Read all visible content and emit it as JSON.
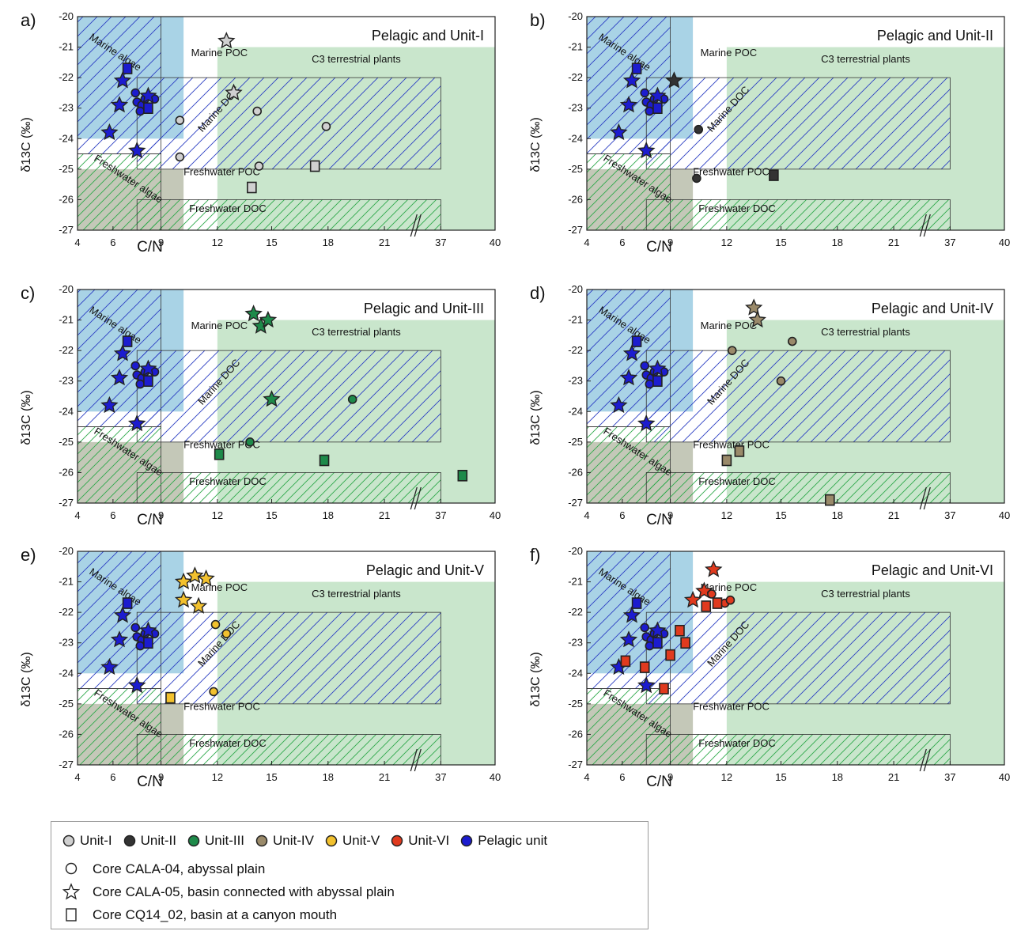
{
  "chart_data": {
    "type": "scatter",
    "x_ticks": [
      "4",
      "6",
      "9",
      "12",
      "15",
      "18",
      "21",
      "37",
      "40"
    ],
    "y_ticks": [
      "-20",
      "-21",
      "-22",
      "-23",
      "-24",
      "-25",
      "-26",
      "-27"
    ],
    "xlabel": "C/N",
    "ylabel": "δ13C (‰)",
    "ylim": [
      -27,
      -20
    ],
    "colors": {
      "Unit-I": "#d0d0d0",
      "Unit-II": "#333333",
      "Unit-III": "#1e8a4a",
      "Unit-IV": "#9a8a6a",
      "Unit-V": "#f2c12e",
      "Unit-VI": "#e03a1e",
      "Pelagic unit": "#1c1ccf",
      "marine_algae_fill": "#a9d3e6",
      "freshwater_algae_fill": "#c4c8b8",
      "terrestrial_fill": "#c9e6cc",
      "marine_hatch": "#2233bb",
      "freshwater_hatch": "#2ea84a"
    },
    "region_labels": {
      "marine_algae": "Marine algae",
      "marine_poc": "Marine POC",
      "marine_doc": "Marine DOC",
      "freshwater_algae": "Freshwater algae",
      "freshwater_poc": "Freshwater POC",
      "freshwater_doc": "Freshwater DOC",
      "c3": "C3 terrestrial plants"
    },
    "pelagic_points": [
      {
        "x": 6.9,
        "y": -21.7,
        "marker": "square"
      },
      {
        "x": 6.6,
        "y": -22.1,
        "marker": "star"
      },
      {
        "x": 6.4,
        "y": -22.9,
        "marker": "star"
      },
      {
        "x": 5.8,
        "y": -23.8,
        "marker": "star"
      },
      {
        "x": 7.5,
        "y": -24.4,
        "marker": "star"
      },
      {
        "x": 7.4,
        "y": -22.5,
        "marker": "circle"
      },
      {
        "x": 7.5,
        "y": -22.8,
        "marker": "circle"
      },
      {
        "x": 7.8,
        "y": -22.9,
        "marker": "circle"
      },
      {
        "x": 7.7,
        "y": -23.1,
        "marker": "circle"
      },
      {
        "x": 8.0,
        "y": -22.7,
        "marker": "circle"
      },
      {
        "x": 8.6,
        "y": -22.7,
        "marker": "circle"
      },
      {
        "x": 8.2,
        "y": -22.6,
        "marker": "star"
      },
      {
        "x": 8.2,
        "y": -23.0,
        "marker": "square"
      }
    ],
    "panels": [
      {
        "letter": "a)",
        "title": "Pelagic and Unit-I",
        "unit": "Unit-I",
        "points": [
          {
            "x": 12.5,
            "y": -20.8,
            "marker": "star"
          },
          {
            "x": 12.9,
            "y": -22.5,
            "marker": "star"
          },
          {
            "x": 10.0,
            "y": -23.4,
            "marker": "circle"
          },
          {
            "x": 10.0,
            "y": -24.6,
            "marker": "circle"
          },
          {
            "x": 14.2,
            "y": -23.1,
            "marker": "circle"
          },
          {
            "x": 14.3,
            "y": -24.9,
            "marker": "circle"
          },
          {
            "x": 17.9,
            "y": -23.6,
            "marker": "circle"
          },
          {
            "x": 17.3,
            "y": -24.9,
            "marker": "square"
          },
          {
            "x": 13.9,
            "y": -25.6,
            "marker": "square"
          }
        ]
      },
      {
        "letter": "b)",
        "title": "Pelagic and Unit-II",
        "unit": "Unit-II",
        "points": [
          {
            "x": 9.2,
            "y": -22.1,
            "marker": "star"
          },
          {
            "x": 10.5,
            "y": -23.7,
            "marker": "circle"
          },
          {
            "x": 10.4,
            "y": -25.3,
            "marker": "circle"
          },
          {
            "x": 14.6,
            "y": -25.2,
            "marker": "square"
          }
        ]
      },
      {
        "letter": "c)",
        "title": "Pelagic and Unit-III",
        "unit": "Unit-III",
        "points": [
          {
            "x": 14.0,
            "y": -20.8,
            "marker": "star"
          },
          {
            "x": 14.4,
            "y": -21.2,
            "marker": "star"
          },
          {
            "x": 14.8,
            "y": -21.0,
            "marker": "star"
          },
          {
            "x": 15.0,
            "y": -23.6,
            "marker": "star"
          },
          {
            "x": 19.3,
            "y": -23.6,
            "marker": "circle"
          },
          {
            "x": 13.8,
            "y": -25.0,
            "marker": "circle"
          },
          {
            "x": 12.1,
            "y": -25.4,
            "marker": "square"
          },
          {
            "x": 17.8,
            "y": -25.6,
            "marker": "square"
          },
          {
            "x": 38.2,
            "y": -26.1,
            "marker": "square"
          }
        ]
      },
      {
        "letter": "d)",
        "title": "Pelagic and Unit-IV",
        "unit": "Unit-IV",
        "points": [
          {
            "x": 13.5,
            "y": -20.6,
            "marker": "star"
          },
          {
            "x": 13.7,
            "y": -21.0,
            "marker": "star"
          },
          {
            "x": 12.3,
            "y": -22.0,
            "marker": "circle"
          },
          {
            "x": 15.6,
            "y": -21.7,
            "marker": "circle"
          },
          {
            "x": 15.0,
            "y": -23.0,
            "marker": "circle"
          },
          {
            "x": 12.7,
            "y": -25.3,
            "marker": "square"
          },
          {
            "x": 12.0,
            "y": -25.6,
            "marker": "square"
          },
          {
            "x": 17.6,
            "y": -26.9,
            "marker": "square"
          }
        ]
      },
      {
        "letter": "e)",
        "title": "Pelagic and Unit-V",
        "unit": "Unit-V",
        "points": [
          {
            "x": 10.2,
            "y": -21.0,
            "marker": "star"
          },
          {
            "x": 10.8,
            "y": -20.8,
            "marker": "star"
          },
          {
            "x": 11.4,
            "y": -20.9,
            "marker": "star"
          },
          {
            "x": 10.2,
            "y": -21.6,
            "marker": "star"
          },
          {
            "x": 11.0,
            "y": -21.8,
            "marker": "star"
          },
          {
            "x": 11.9,
            "y": -22.4,
            "marker": "circle"
          },
          {
            "x": 12.5,
            "y": -22.7,
            "marker": "circle"
          },
          {
            "x": 11.8,
            "y": -24.6,
            "marker": "circle"
          },
          {
            "x": 9.5,
            "y": -24.8,
            "marker": "square"
          }
        ]
      },
      {
        "letter": "f)",
        "title": "Pelagic and Unit-VI",
        "unit": "Unit-VI",
        "points": [
          {
            "x": 11.3,
            "y": -20.6,
            "marker": "star"
          },
          {
            "x": 10.8,
            "y": -21.3,
            "marker": "star"
          },
          {
            "x": 10.2,
            "y": -21.6,
            "marker": "star"
          },
          {
            "x": 11.2,
            "y": -21.4,
            "marker": "circle"
          },
          {
            "x": 11.9,
            "y": -21.7,
            "marker": "circle"
          },
          {
            "x": 12.2,
            "y": -21.6,
            "marker": "circle"
          },
          {
            "x": 10.9,
            "y": -21.8,
            "marker": "square"
          },
          {
            "x": 11.5,
            "y": -21.7,
            "marker": "square"
          },
          {
            "x": 9.5,
            "y": -22.6,
            "marker": "square"
          },
          {
            "x": 9.8,
            "y": -23.0,
            "marker": "square"
          },
          {
            "x": 9.0,
            "y": -23.4,
            "marker": "square"
          },
          {
            "x": 6.2,
            "y": -23.6,
            "marker": "square"
          },
          {
            "x": 7.4,
            "y": -23.8,
            "marker": "square"
          },
          {
            "x": 8.6,
            "y": -24.5,
            "marker": "square"
          }
        ]
      }
    ]
  },
  "legend": {
    "units": [
      {
        "label": "Unit-I",
        "color": "#d0d0d0"
      },
      {
        "label": "Unit-II",
        "color": "#333333"
      },
      {
        "label": "Unit-III",
        "color": "#1e8a4a"
      },
      {
        "label": "Unit-IV",
        "color": "#9a8a6a"
      },
      {
        "label": "Unit-V",
        "color": "#f2c12e"
      },
      {
        "label": "Unit-VI",
        "color": "#e03a1e"
      },
      {
        "label": "Pelagic unit",
        "color": "#1c1ccf"
      }
    ],
    "cores": [
      {
        "marker": "circle",
        "label": "Core CALA-04, abyssal plain"
      },
      {
        "marker": "star",
        "label": "Core CALA-05, basin connected with abyssal plain"
      },
      {
        "marker": "square",
        "label": "Core CQ14_02, basin at a canyon mouth"
      }
    ]
  }
}
